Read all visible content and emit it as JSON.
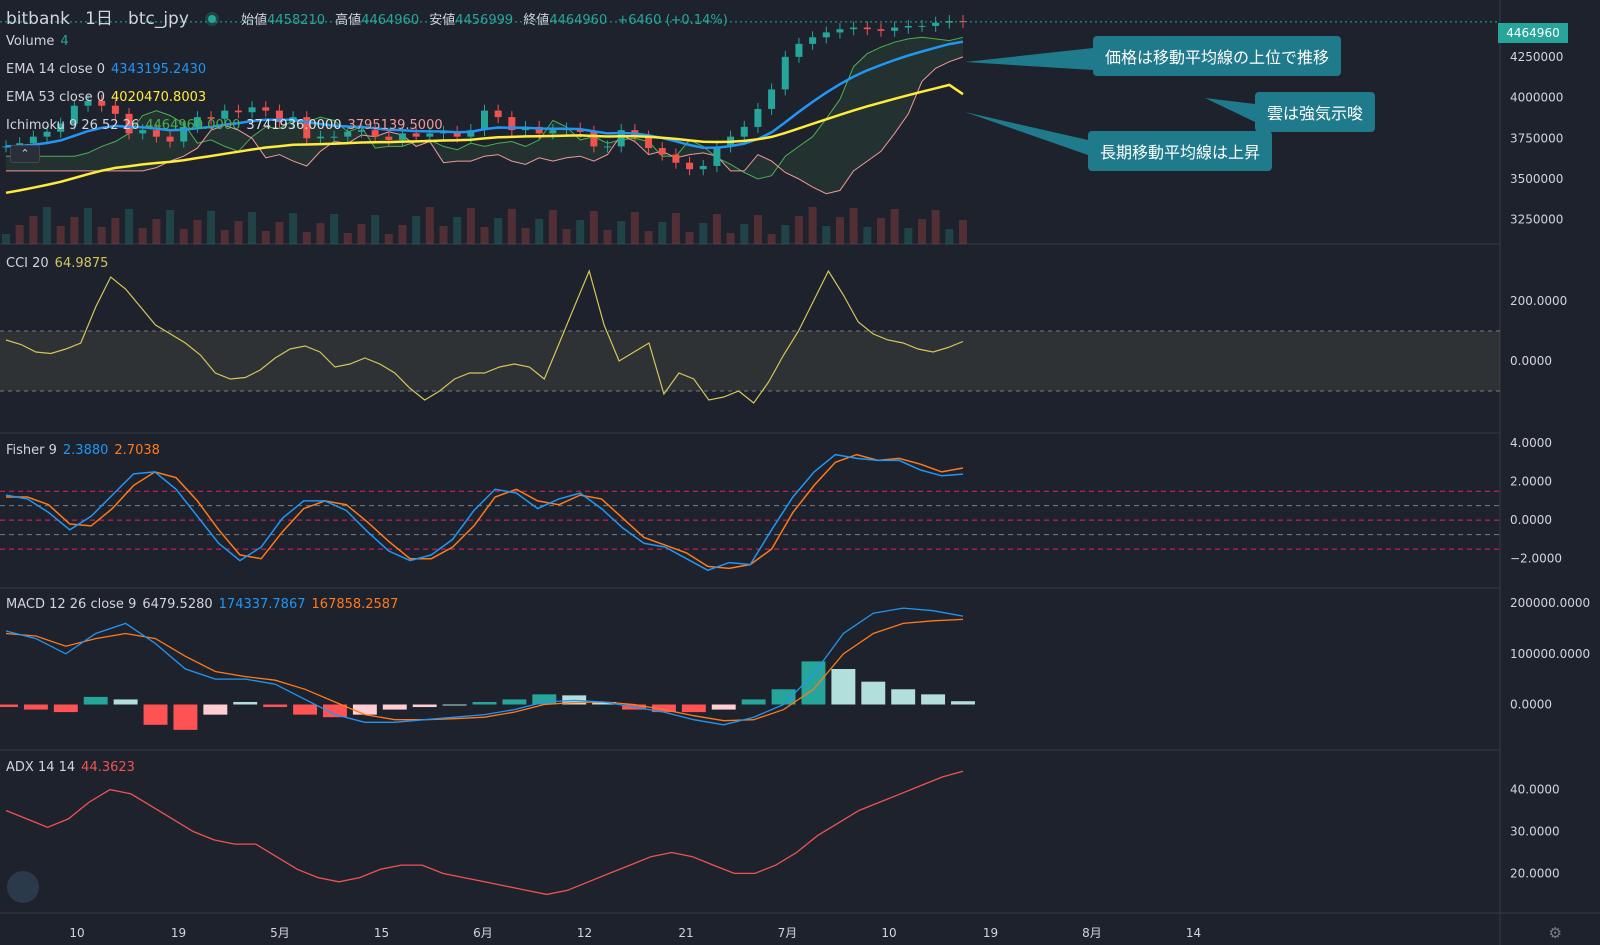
{
  "header": {
    "exchange": "bitbank",
    "interval": "1日",
    "symbol": "btc_jpy",
    "open_label": "始値",
    "open": "4458210",
    "high_label": "高値",
    "high": "4464960",
    "low_label": "安値",
    "low": "4456999",
    "close_label": "終値",
    "close": "4464960",
    "change": "+6460 (+0.14%)"
  },
  "indicators": {
    "volume": {
      "label": "Volume",
      "value": "4"
    },
    "ema14": {
      "label": "EMA 14 close 0",
      "value": "4343195.2430",
      "color": "#2196f3"
    },
    "ema53": {
      "label": "EMA 53 close 0",
      "value": "4020470.8003",
      "color": "#ffeb3b"
    },
    "ichimoku": {
      "label": "Ichimoku 9 26 52 26",
      "v1": "4464960.0000",
      "v2": "3741936.0000",
      "v3": "3795139.5000",
      "c1": "#4caf50",
      "c2": "#e0e0e0",
      "c3": "#ef9a9a"
    },
    "cci": {
      "label": "CCI 20",
      "value": "64.9875",
      "color": "#d4c55a"
    },
    "fisher": {
      "label": "Fisher 9",
      "v1": "2.3880",
      "v2": "2.7038",
      "c1": "#2196f3",
      "c2": "#ff7a1a"
    },
    "macd": {
      "label": "MACD 12 26 close 9",
      "v1": "6479.5280",
      "v2": "174337.7867",
      "v3": "167858.2587",
      "c2": "#2196f3",
      "c3": "#ff7a1a"
    },
    "adx": {
      "label": "ADX 14 14",
      "value": "44.3623",
      "color": "#ef5350"
    }
  },
  "callouts": [
    {
      "text": "価格は移動平均線の上位で推移"
    },
    {
      "text": "雲は強気示唆"
    },
    {
      "text": "長期移動平均線は上昇"
    }
  ],
  "price_tag": "4464960",
  "chart_data": [
    {
      "type": "candlestick",
      "title": "",
      "x_ticks": [
        "10",
        "19",
        "5月",
        "15",
        "6月",
        "12",
        "21",
        "7月",
        "10",
        "19",
        "8月",
        "14"
      ],
      "y_ticks": [
        "4250000",
        "4000000",
        "3750000",
        "3500000",
        "3250000"
      ],
      "ylim": [
        3150000,
        4550000
      ],
      "last_price": 4464960,
      "ohlc_close_approx": [
        3700000,
        3720000,
        3760000,
        3790000,
        3840000,
        3950000,
        3980000,
        3950000,
        3900000,
        3780000,
        3800000,
        3760000,
        3730000,
        3820000,
        3880000,
        3870000,
        3920000,
        3910000,
        3940000,
        3920000,
        3850000,
        3880000,
        3750000,
        3760000,
        3760000,
        3790000,
        3800000,
        3760000,
        3740000,
        3780000,
        3760000,
        3780000,
        3790000,
        3760000,
        3800000,
        3920000,
        3880000,
        3800000,
        3820000,
        3780000,
        3800000,
        3810000,
        3790000,
        3700000,
        3700000,
        3800000,
        3760000,
        3690000,
        3650000,
        3600000,
        3560000,
        3580000,
        3700000,
        3760000,
        3820000,
        3930000,
        4050000,
        4250000,
        4330000,
        4370000,
        4400000,
        4420000,
        4430000,
        4420000,
        4410000,
        4430000,
        4440000,
        4440000,
        4460000,
        4470000,
        4464960
      ],
      "series": [
        {
          "name": "EMA 14 close 0",
          "last": 4343195.243
        },
        {
          "name": "EMA 53 close 0",
          "last": 4020470.8003
        }
      ]
    },
    {
      "type": "line",
      "title": "",
      "y_ticks": [
        "200.0000",
        "0.0000"
      ],
      "ylim": [
        -200,
        350
      ],
      "band": [
        -100,
        100
      ],
      "series": [
        {
          "name": "CCI 20",
          "values": [
            70,
            55,
            30,
            25,
            40,
            60,
            180,
            280,
            240,
            180,
            120,
            90,
            60,
            20,
            -40,
            -60,
            -55,
            -30,
            10,
            40,
            50,
            30,
            -20,
            -10,
            10,
            -10,
            -40,
            -90,
            -130,
            -100,
            -60,
            -40,
            -40,
            -20,
            -10,
            -20,
            -60,
            60,
            180,
            300,
            120,
            0,
            30,
            60,
            -110,
            -40,
            -60,
            -130,
            -120,
            -100,
            -140,
            -70,
            20,
            100,
            200,
            300,
            220,
            130,
            90,
            70,
            60,
            40,
            30,
            45,
            64.9875
          ]
        }
      ]
    },
    {
      "type": "line",
      "title": "",
      "y_ticks": [
        "4.0000",
        "2.0000",
        "0.0000",
        "−2.0000"
      ],
      "ylim": [
        -3,
        4
      ],
      "series": [
        {
          "name": "Fisher",
          "values": [
            1.3,
            1.1,
            0.4,
            -0.5,
            0.2,
            1.3,
            2.4,
            2.5,
            1.6,
            0.2,
            -1.2,
            -2.1,
            -1.4,
            0.1,
            1.0,
            1.0,
            0.5,
            -0.6,
            -1.6,
            -2.1,
            -1.8,
            -1.0,
            0.5,
            1.6,
            1.4,
            0.6,
            1.1,
            1.4,
            0.6,
            -0.4,
            -1.2,
            -1.4,
            -2.0,
            -2.6,
            -2.2,
            -2.3,
            -0.5,
            1.2,
            2.5,
            3.4,
            3.2,
            3.1,
            3.1,
            2.6,
            2.3,
            2.388
          ]
        },
        {
          "name": "Trigger",
          "values": [
            1.2,
            1.2,
            0.8,
            -0.2,
            -0.3,
            0.6,
            1.8,
            2.5,
            2.2,
            1.0,
            -0.5,
            -1.8,
            -2.0,
            -0.6,
            0.6,
            1.0,
            0.8,
            -0.1,
            -1.1,
            -2.0,
            -2.0,
            -1.4,
            -0.3,
            1.2,
            1.6,
            1.0,
            0.8,
            1.3,
            1.1,
            0.1,
            -0.9,
            -1.3,
            -1.7,
            -2.4,
            -2.5,
            -2.3,
            -1.5,
            0.4,
            1.8,
            3.0,
            3.4,
            3.1,
            3.2,
            2.9,
            2.5,
            2.7038
          ]
        }
      ]
    },
    {
      "type": "bar",
      "title": "",
      "y_ticks": [
        "200000.0000",
        "100000.0000",
        "0.0000"
      ],
      "ylim": [
        -70000,
        210000
      ],
      "series": [
        {
          "name": "MACD",
          "values": [
            145000,
            130000,
            100000,
            140000,
            160000,
            120000,
            70000,
            50000,
            50000,
            40000,
            10000,
            -20000,
            -35000,
            -35000,
            -30000,
            -25000,
            -20000,
            -10000,
            5000,
            8000,
            5000,
            -5000,
            -15000,
            -30000,
            -40000,
            -25000,
            0,
            60000,
            140000,
            180000,
            190000,
            185000,
            174337.7867
          ]
        },
        {
          "name": "Signal",
          "values": [
            140000,
            135000,
            115000,
            130000,
            140000,
            130000,
            95000,
            65000,
            55000,
            48000,
            30000,
            5000,
            -20000,
            -30000,
            -30000,
            -28000,
            -25000,
            -15000,
            0,
            4000,
            5000,
            0,
            -10000,
            -22000,
            -32000,
            -30000,
            -10000,
            30000,
            100000,
            140000,
            160000,
            165000,
            167858.2587
          ]
        },
        {
          "name": "Histogram",
          "values": [
            -5000,
            -10000,
            -15000,
            15000,
            10000,
            -40000,
            -50000,
            -20000,
            5000,
            -5000,
            -20000,
            -25000,
            -20000,
            -10000,
            -5000,
            0,
            5000,
            10000,
            20000,
            18000,
            5000,
            -10000,
            -15000,
            -15000,
            -10000,
            10000,
            30000,
            85000,
            70000,
            45000,
            30000,
            20000,
            6479.528
          ]
        }
      ]
    },
    {
      "type": "line",
      "title": "",
      "y_ticks": [
        "40.0000",
        "30.0000",
        "20.0000"
      ],
      "ylim": [
        12,
        48
      ],
      "series": [
        {
          "name": "ADX 14 14",
          "values": [
            35,
            33,
            31,
            33,
            37,
            40,
            39,
            36,
            33,
            30,
            28,
            27,
            27,
            24,
            21,
            19,
            18,
            19,
            21,
            22,
            22,
            20,
            19,
            18,
            17,
            16,
            15,
            16,
            18,
            20,
            22,
            24,
            25,
            24,
            22,
            20,
            20,
            22,
            25,
            29,
            32,
            35,
            37,
            39,
            41,
            43,
            44.3623
          ]
        }
      ]
    }
  ]
}
